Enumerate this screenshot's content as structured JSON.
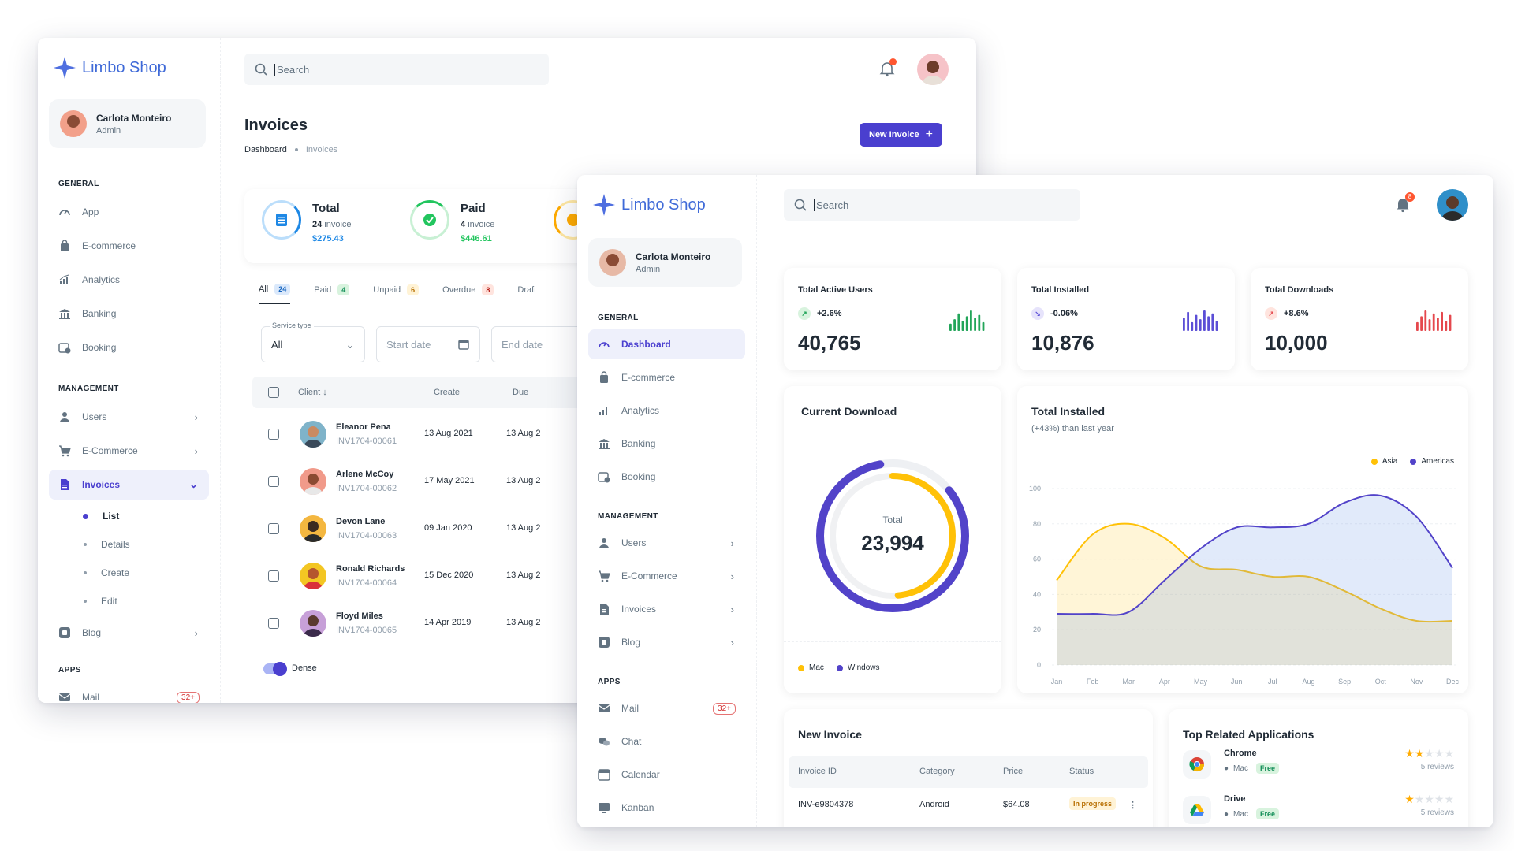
{
  "brand": "Limbo Shop",
  "user": {
    "name": "Carlota Monteiro",
    "role": "Admin"
  },
  "search_placeholder": "Search",
  "back": {
    "sections": {
      "general": "GENERAL",
      "management": "MANAGEMENT",
      "apps": "APPS"
    },
    "general_items": [
      "App",
      "E-commerce",
      "Analytics",
      "Banking",
      "Booking"
    ],
    "management_items": [
      "Users",
      "E-Commerce",
      "Invoices"
    ],
    "invoice_subitems": [
      "List",
      "Details",
      "Create",
      "Edit"
    ],
    "blog": "Blog",
    "mail": "Mail",
    "mail_badge": "32+",
    "page_title": "Invoices",
    "breadcrumb": [
      "Dashboard",
      "Invoices"
    ],
    "new_invoice_label": "New Invoice",
    "stats": [
      {
        "title": "Total",
        "count": "24",
        "suffix": "invoice",
        "amount": "$275.43",
        "color": "#1e88e5"
      },
      {
        "title": "Paid",
        "count": "4",
        "suffix": "invoice",
        "amount": "$446.61",
        "color": "#22c55e"
      }
    ],
    "tabs": [
      {
        "label": "All",
        "count": "24"
      },
      {
        "label": "Paid",
        "count": "4"
      },
      {
        "label": "Unpaid",
        "count": "6"
      },
      {
        "label": "Overdue",
        "count": "8"
      },
      {
        "label": "Draft",
        "count": ""
      }
    ],
    "filters": {
      "service_type_label": "Service type",
      "service_type_value": "All",
      "start_date": "Start date",
      "end_date": "End date"
    },
    "columns": {
      "client": "Client",
      "create": "Create",
      "due": "Due"
    },
    "rows": [
      {
        "name": "Eleanor Pena",
        "id": "INV1704-00061",
        "create": "13 Aug 2021",
        "due": "13 Aug 2"
      },
      {
        "name": "Arlene McCoy",
        "id": "INV1704-00062",
        "create": "17 May 2021",
        "due": "13 Aug 2"
      },
      {
        "name": "Devon Lane",
        "id": "INV1704-00063",
        "create": "09 Jan 2020",
        "due": "13 Aug 2"
      },
      {
        "name": "Ronald Richards",
        "id": "INV1704-00064",
        "create": "15 Dec 2020",
        "due": "13 Aug 2"
      },
      {
        "name": "Floyd Miles",
        "id": "INV1704-00065",
        "create": "14 Apr 2019",
        "due": "13 Aug 2"
      }
    ],
    "dense_label": "Dense"
  },
  "front": {
    "general_items": [
      "Dashboard",
      "E-commerce",
      "Analytics",
      "Banking",
      "Booking"
    ],
    "management_items": [
      "Users",
      "E-Commerce",
      "Invoices",
      "Blog"
    ],
    "apps_items": [
      "Mail",
      "Chat",
      "Calendar",
      "Kanban"
    ],
    "mail_badge": "32+",
    "bell_badge": "8",
    "kpis": [
      {
        "label": "Total Active Users",
        "trend": "+2.6%",
        "value": "40,765",
        "color": "#22a559",
        "bars": [
          5,
          8,
          12,
          7,
          10,
          14,
          9,
          11,
          6
        ]
      },
      {
        "label": "Total Installed",
        "trend": "-0.06%",
        "value": "10,876",
        "color": "#5b4ed6",
        "bars": [
          9,
          13,
          6,
          11,
          8,
          14,
          10,
          12,
          7
        ]
      },
      {
        "label": "Total Downloads",
        "trend": "+8.6%",
        "value": "10,000",
        "color": "#e5484d",
        "bars": [
          6,
          10,
          14,
          8,
          12,
          9,
          13,
          7,
          11
        ]
      }
    ],
    "current_download": {
      "title": "Current Download",
      "center_label": "Total",
      "center_value": "23,994",
      "legend": [
        "Mac",
        "Windows"
      ],
      "colors": [
        "#ffc107",
        "#5243c9"
      ]
    },
    "total_installed": {
      "title": "Total Installed",
      "subtitle": "(+43%) than last year",
      "legend": [
        "Asia",
        "Americas"
      ],
      "colors": [
        "#ffc107",
        "#5243c9"
      ]
    },
    "chart_data": {
      "type": "area",
      "x": [
        "Jan",
        "Feb",
        "Mar",
        "Apr",
        "May",
        "Jun",
        "Jul",
        "Aug",
        "Sep",
        "Oct",
        "Nov",
        "Dec"
      ],
      "yticks": [
        0,
        20,
        40,
        60,
        80,
        100
      ],
      "ylim": [
        0,
        100
      ],
      "series": [
        {
          "name": "Asia",
          "values": [
            48,
            74,
            80,
            72,
            56,
            54,
            50,
            50,
            42,
            32,
            25,
            25
          ]
        },
        {
          "name": "Americas",
          "values": [
            29,
            29,
            30,
            48,
            66,
            78,
            78,
            80,
            92,
            96,
            84,
            55
          ]
        }
      ]
    },
    "new_invoice": {
      "title": "New Invoice",
      "columns": [
        "Invoice ID",
        "Category",
        "Price",
        "Status"
      ],
      "rows": [
        {
          "id": "INV-e9804378",
          "category": "Android",
          "price": "$64.08",
          "status": "In progress"
        }
      ]
    },
    "top_apps": {
      "title": "Top Related Applications",
      "items": [
        {
          "name": "Chrome",
          "platform": "Mac",
          "price": "Free",
          "rating": 2,
          "reviews": "5 reviews"
        },
        {
          "name": "Drive",
          "platform": "Mac",
          "price": "Free",
          "rating": 1,
          "reviews": "5 reviews"
        }
      ]
    }
  }
}
